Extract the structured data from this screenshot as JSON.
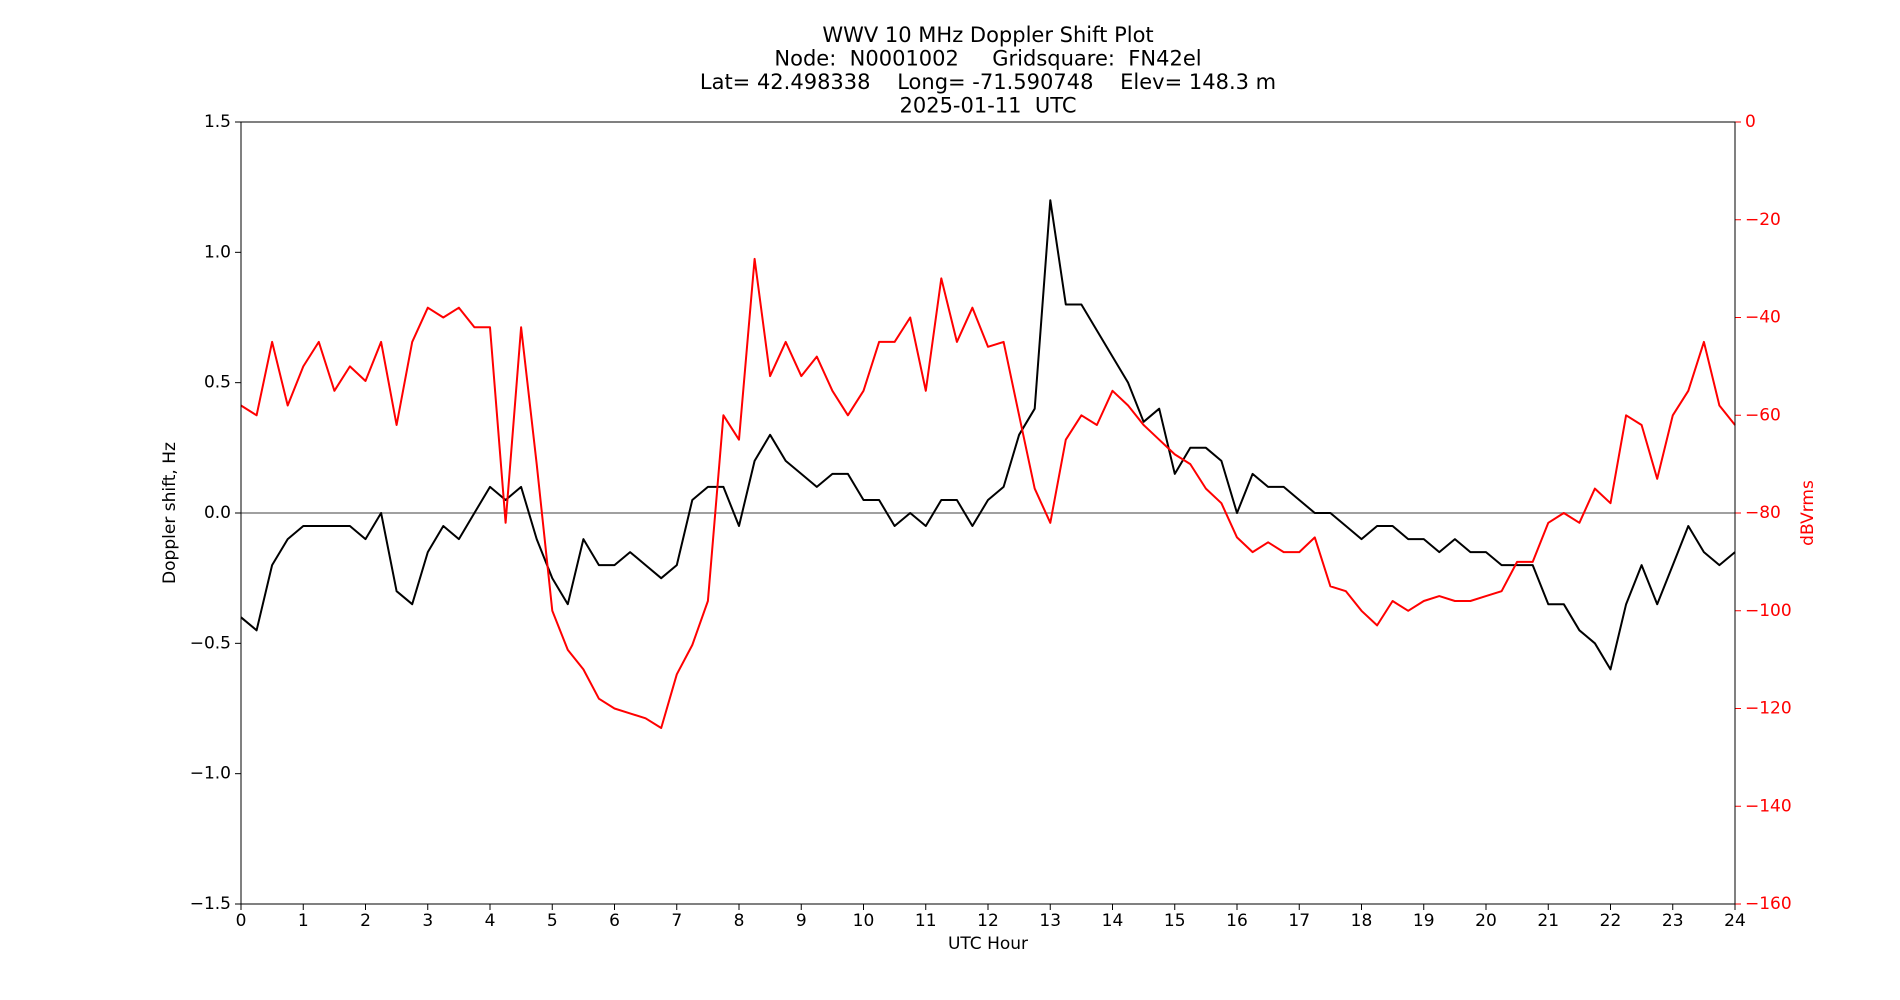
{
  "chart_data": {
    "type": "line",
    "title_lines": [
      "WWV 10 MHz Doppler Shift Plot",
      "Node:  N0001002     Gridsquare:  FN42el",
      "Lat= 42.498338    Long= -71.590748    Elev= 148.3 m",
      "2025-01-11  UTC"
    ],
    "x_label": "UTC Hour",
    "y_label": "Doppler shift, Hz",
    "y2_label": "dBVrms",
    "x": [
      0,
      0.25,
      0.5,
      0.75,
      1,
      1.25,
      1.5,
      1.75,
      2,
      2.25,
      2.5,
      2.75,
      3,
      3.25,
      3.5,
      3.75,
      4,
      4.25,
      4.5,
      4.75,
      5,
      5.25,
      5.5,
      5.75,
      6,
      6.25,
      6.5,
      6.75,
      7,
      7.25,
      7.5,
      7.75,
      8,
      8.25,
      8.5,
      8.75,
      9,
      9.25,
      9.5,
      9.75,
      10,
      10.25,
      10.5,
      10.75,
      11,
      11.25,
      11.5,
      11.75,
      12,
      12.25,
      12.5,
      12.75,
      13,
      13.25,
      13.5,
      13.75,
      14,
      14.25,
      14.5,
      14.75,
      15,
      15.25,
      15.5,
      15.75,
      16,
      16.25,
      16.5,
      16.75,
      17,
      17.25,
      17.5,
      17.75,
      18,
      18.25,
      18.5,
      18.75,
      19,
      19.25,
      19.5,
      19.75,
      20,
      20.25,
      20.5,
      20.75,
      21,
      21.25,
      21.5,
      21.75,
      22,
      22.25,
      22.5,
      22.75,
      23,
      23.25,
      23.5,
      23.75,
      24
    ],
    "series": [
      {
        "name": "Doppler shift",
        "color": "#000000",
        "axis": "y",
        "values": [
          -0.4,
          -0.45,
          -0.2,
          -0.1,
          -0.05,
          -0.05,
          -0.05,
          -0.05,
          -0.1,
          0.0,
          -0.3,
          -0.35,
          -0.15,
          -0.05,
          -0.1,
          0.0,
          0.1,
          0.05,
          0.1,
          -0.1,
          -0.25,
          -0.35,
          -0.1,
          -0.2,
          -0.2,
          -0.15,
          -0.2,
          -0.25,
          -0.2,
          0.05,
          0.1,
          0.1,
          -0.05,
          0.2,
          0.3,
          0.2,
          0.15,
          0.1,
          0.15,
          0.15,
          0.05,
          0.05,
          -0.05,
          0.0,
          -0.05,
          0.05,
          0.05,
          -0.05,
          0.05,
          0.1,
          0.3,
          0.4,
          1.2,
          0.8,
          0.8,
          0.7,
          0.6,
          0.5,
          0.35,
          0.4,
          0.15,
          0.25,
          0.25,
          0.2,
          0.0,
          0.15,
          0.1,
          0.1,
          0.05,
          0.0,
          0.0,
          -0.05,
          -0.1,
          -0.05,
          -0.05,
          -0.1,
          -0.1,
          -0.15,
          -0.1,
          -0.15,
          -0.15,
          -0.2,
          -0.2,
          -0.2,
          -0.35,
          -0.35,
          -0.45,
          -0.5,
          -0.6,
          -0.35,
          -0.2,
          -0.35,
          -0.2,
          -0.05,
          -0.15,
          -0.2,
          -0.15
        ]
      },
      {
        "name": "dBVrms",
        "color": "#ff0000",
        "axis": "y2",
        "values": [
          -58,
          -60,
          -45,
          -58,
          -50,
          -45,
          -55,
          -50,
          -53,
          -45,
          -62,
          -45,
          -38,
          -40,
          -38,
          -42,
          -42,
          -82,
          -42,
          -70,
          -100,
          -108,
          -112,
          -118,
          -120,
          -121,
          -122,
          -124,
          -113,
          -107,
          -98,
          -60,
          -65,
          -28,
          -52,
          -45,
          -52,
          -48,
          -55,
          -60,
          -55,
          -45,
          -45,
          -40,
          -55,
          -32,
          -45,
          -38,
          -46,
          -45,
          -60,
          -75,
          -82,
          -65,
          -60,
          -62,
          -55,
          -58,
          -62,
          -65,
          -68,
          -70,
          -75,
          -78,
          -85,
          -88,
          -86,
          -88,
          -88,
          -85,
          -95,
          -96,
          -100,
          -103,
          -98,
          -100,
          -98,
          -97,
          -98,
          -98,
          -97,
          -96,
          -90,
          -90,
          -82,
          -80,
          -82,
          -75,
          -78,
          -60,
          -62,
          -73,
          -60,
          -55,
          -45,
          -58,
          -62
        ]
      }
    ],
    "xlim": [
      0,
      24
    ],
    "xticks": [
      0,
      1,
      2,
      3,
      4,
      5,
      6,
      7,
      8,
      9,
      10,
      11,
      12,
      13,
      14,
      15,
      16,
      17,
      18,
      19,
      20,
      21,
      22,
      23,
      24
    ],
    "ylim": [
      -1.5,
      1.5
    ],
    "yticks": [
      {
        "value": -1.5,
        "label": "−1.5"
      },
      {
        "value": -1.0,
        "label": "−1.0"
      },
      {
        "value": -0.5,
        "label": "−0.5"
      },
      {
        "value": 0,
        "label": "0.0"
      },
      {
        "value": 0.5,
        "label": "0.5"
      },
      {
        "value": 1.0,
        "label": "1.0"
      },
      {
        "value": 1.5,
        "label": "1.5"
      }
    ],
    "y2lim": [
      -160,
      0
    ],
    "y2ticks": [
      {
        "value": -160,
        "label": "−160"
      },
      {
        "value": -140,
        "label": "−140"
      },
      {
        "value": -120,
        "label": "−120"
      },
      {
        "value": -100,
        "label": "−100"
      },
      {
        "value": -80,
        "label": "−80"
      },
      {
        "value": -60,
        "label": "−60"
      },
      {
        "value": -40,
        "label": "−40"
      },
      {
        "value": -20,
        "label": "−20"
      },
      0
    ],
    "y2_color": "#ff0000",
    "hline": 0,
    "hline_color": "#808080"
  }
}
